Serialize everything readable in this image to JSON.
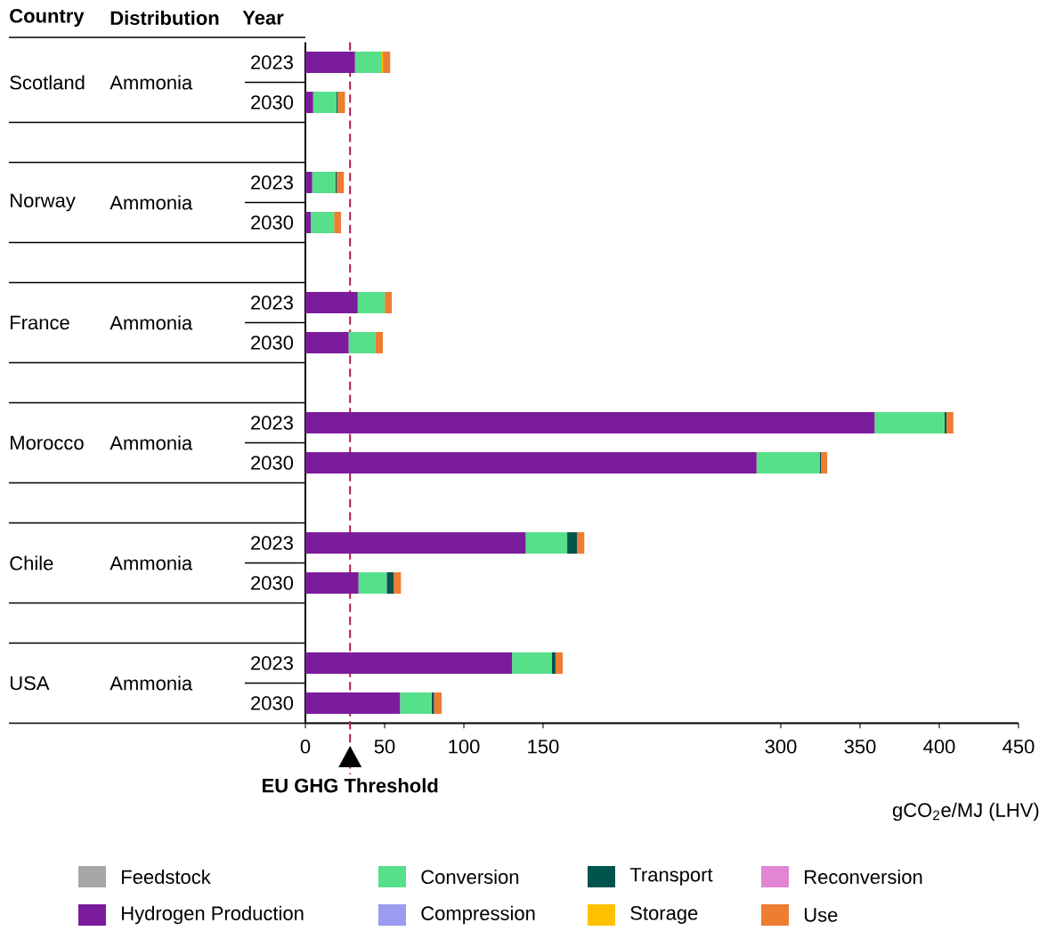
{
  "chart_data": {
    "type": "bar",
    "orientation": "horizontal",
    "stacked": true,
    "categories": [
      "2023",
      "2030",
      null,
      "2023",
      "2030",
      null,
      "2023",
      "2030",
      null,
      "2023",
      "2030",
      null,
      "2023",
      "2030",
      null,
      "2023",
      "2030"
    ],
    "series": [
      {
        "name": "Feedstock",
        "color": "#a6a6a6",
        "values": [
          0,
          0,
          null,
          0,
          0,
          null,
          0,
          0,
          null,
          0,
          0,
          null,
          0,
          0,
          null,
          0,
          0
        ]
      },
      {
        "name": "Hydrogen  Production",
        "color": "#7b1c9c",
        "values": [
          31.3,
          4.9,
          null,
          4.3,
          3.4,
          null,
          33,
          27.3,
          null,
          359.2,
          284.7,
          null,
          139,
          33.5,
          null,
          130.4,
          59.7
        ]
      },
      {
        "name": "Conversion",
        "color": "#57e08a",
        "values": [
          17,
          14.8,
          null,
          14.7,
          14.7,
          null,
          17.1,
          17,
          null,
          44.1,
          40,
          null,
          26.2,
          17.8,
          null,
          25.2,
          20
        ]
      },
      {
        "name": "Compression",
        "color": "#9a9cf0",
        "values": [
          0,
          0,
          null,
          0,
          0,
          null,
          0,
          0,
          null,
          0,
          0,
          null,
          0,
          0,
          null,
          0,
          0
        ]
      },
      {
        "name": "Transport",
        "color": "#00544e",
        "values": [
          0,
          0.7,
          null,
          0.8,
          0,
          null,
          0,
          0,
          null,
          1.2,
          0.6,
          null,
          6.2,
          4.4,
          null,
          2.2,
          1.5
        ]
      },
      {
        "name": "Storage",
        "color": "#ffc000",
        "values": [
          0.6,
          0,
          null,
          0,
          0,
          null,
          0,
          0,
          null,
          0,
          0,
          null,
          0,
          0,
          null,
          0,
          0
        ]
      },
      {
        "name": "Reconversion",
        "color": "#e086d2",
        "values": [
          0,
          0,
          null,
          0,
          0,
          null,
          0,
          0,
          null,
          0,
          0,
          null,
          0,
          0,
          null,
          0,
          0
        ]
      },
      {
        "name": "Use",
        "color": "#ed7d31",
        "values": [
          4.6,
          4.6,
          null,
          4.5,
          4.4,
          null,
          4.4,
          4.6,
          null,
          4.4,
          4,
          null,
          4.6,
          4.6,
          null,
          4.6,
          4.8
        ]
      }
    ],
    "xlim": [
      0,
      450
    ],
    "xticks": [
      0,
      50,
      100,
      150,
      300,
      350,
      400,
      450
    ],
    "xlabel": "gCO$_{2}$e/MJ  (LHV)",
    "ref_lines": [
      {
        "axis": "x",
        "value": 28.2,
        "label": "EU GHG Threshold",
        "color": "#b3184d",
        "line_style": "dashed"
      }
    ],
    "annotations": [
      "Country",
      "Distribution",
      "Year",
      "Scotland",
      "Ammonia",
      "Norway",
      "Ammonia",
      "France",
      "Ammonia",
      "Morocco",
      "Ammonia",
      "Chile",
      "Ammonia",
      "USA",
      "Ammonia"
    ],
    "legend": "bottom",
    "grid": false
  }
}
